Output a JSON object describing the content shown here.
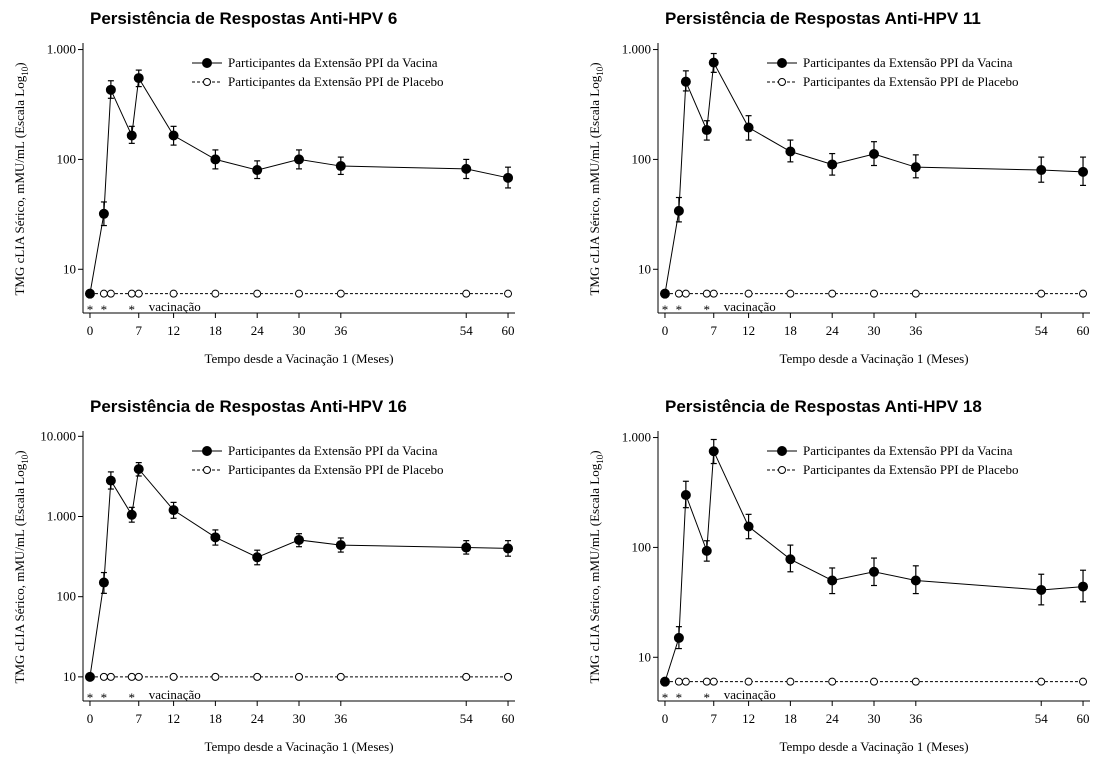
{
  "chart_data": [
    {
      "type": "line",
      "title": "Persistência de Respostas Anti-HPV 6",
      "ylabel": "TMG cLIA Sérico, mMU/mL (Escala Log",
      "ylabel_sub": "10",
      "ylabel_end": ")",
      "xlabel": "Tempo desde a Vacinação 1 (Meses)",
      "x": [
        0,
        2,
        3,
        6,
        7,
        12,
        18,
        24,
        30,
        36,
        54,
        60
      ],
      "series": [
        {
          "name": "Participantes da Extensão PPI da Vacina",
          "color": "#000000",
          "marker": "filled",
          "dashed": false,
          "values": [
            6,
            32,
            430,
            165,
            550,
            165,
            100,
            80,
            100,
            87,
            82,
            68
          ],
          "err_low": [
            null,
            25,
            360,
            140,
            460,
            135,
            82,
            67,
            82,
            73,
            67,
            55
          ],
          "err_high": [
            null,
            41,
            520,
            200,
            650,
            200,
            122,
            97,
            122,
            105,
            100,
            85
          ]
        },
        {
          "name": "Participantes da Extensão PPI de Placebo",
          "color": "#000000",
          "marker": "open",
          "dashed": true,
          "values": [
            6,
            6,
            6,
            6,
            6,
            6,
            6,
            6,
            6,
            6,
            6,
            6
          ]
        }
      ],
      "xlim": [
        -1,
        61
      ],
      "xticks": [
        0,
        7,
        12,
        18,
        24,
        30,
        36,
        54,
        60
      ],
      "ylim": [
        4,
        1100
      ],
      "yticks": [
        10,
        100,
        {
          "value": 1000,
          "label": "1.000"
        }
      ],
      "log_y": true,
      "vaccination_marker": "*",
      "vaccination_x": [
        0,
        2,
        6
      ],
      "vaccination_text": "vacinação"
    },
    {
      "type": "line",
      "title": "Persistência de Respostas Anti-HPV 11",
      "ylabel": "TMG cLIA Sérico, mMU/mL (Escala Log",
      "ylabel_sub": "10",
      "ylabel_end": ")",
      "xlabel": "Tempo desde a Vacinação 1 (Meses)",
      "x": [
        0,
        2,
        3,
        6,
        7,
        12,
        18,
        24,
        30,
        36,
        54,
        60
      ],
      "series": [
        {
          "name": "Participantes da Extensão PPI da Vacina",
          "color": "#000000",
          "marker": "filled",
          "dashed": false,
          "values": [
            6,
            34,
            510,
            185,
            760,
            195,
            118,
            90,
            112,
            85,
            80,
            77
          ],
          "err_low": [
            null,
            27,
            420,
            150,
            620,
            150,
            95,
            72,
            88,
            68,
            62,
            58
          ],
          "err_high": [
            null,
            45,
            640,
            225,
            920,
            250,
            150,
            113,
            145,
            110,
            105,
            105
          ]
        },
        {
          "name": "Participantes da Extensão PPI de Placebo",
          "color": "#000000",
          "marker": "open",
          "dashed": true,
          "values": [
            6,
            6,
            6,
            6,
            6,
            6,
            6,
            6,
            6,
            6,
            6,
            6
          ]
        }
      ],
      "xlim": [
        -1,
        61
      ],
      "xticks": [
        0,
        7,
        12,
        18,
        24,
        30,
        36,
        54,
        60
      ],
      "ylim": [
        4,
        1100
      ],
      "yticks": [
        10,
        100,
        {
          "value": 1000,
          "label": "1.000"
        }
      ],
      "log_y": true,
      "vaccination_marker": "*",
      "vaccination_x": [
        0,
        2,
        6
      ],
      "vaccination_text": "vacinação"
    },
    {
      "type": "line",
      "title": "Persistência de Respostas Anti-HPV 16",
      "ylabel": "TMG cLIA Sérico, mMU/mL (Escala Log",
      "ylabel_sub": "10",
      "ylabel_end": ")",
      "xlabel": "Tempo desde a Vacinação 1 (Meses)",
      "x": [
        0,
        2,
        3,
        6,
        7,
        12,
        18,
        24,
        30,
        36,
        54,
        60
      ],
      "series": [
        {
          "name": "Participantes da Extensão PPI da Vacina",
          "color": "#000000",
          "marker": "filled",
          "dashed": false,
          "values": [
            10,
            150,
            2800,
            1050,
            3900,
            1200,
            550,
            310,
            510,
            440,
            410,
            400
          ],
          "err_low": [
            null,
            110,
            2200,
            850,
            3200,
            950,
            440,
            250,
            420,
            360,
            340,
            320
          ],
          "err_high": [
            null,
            200,
            3600,
            1300,
            4700,
            1500,
            680,
            380,
            610,
            540,
            500,
            500
          ]
        },
        {
          "name": "Participantes da Extensão PPI de Placebo",
          "color": "#000000",
          "marker": "open",
          "dashed": true,
          "values": [
            10,
            10,
            10,
            10,
            10,
            10,
            10,
            10,
            10,
            10,
            10,
            10
          ]
        }
      ],
      "xlim": [
        -1,
        61
      ],
      "xticks": [
        0,
        7,
        12,
        18,
        24,
        30,
        36,
        54,
        60
      ],
      "ylim": [
        5,
        11000
      ],
      "yticks": [
        10,
        100,
        {
          "value": 1000,
          "label": "1.000"
        },
        {
          "value": 10000,
          "label": "10.000"
        }
      ],
      "log_y": true,
      "vaccination_marker": "*",
      "vaccination_x": [
        0,
        2,
        6
      ],
      "vaccination_text": "vacinação"
    },
    {
      "type": "line",
      "title": "Persistência de Respostas Anti-HPV 18",
      "ylabel": "TMG cLIA Sérico, mMU/mL (Escala Log",
      "ylabel_sub": "10",
      "ylabel_end": ")",
      "xlabel": "Tempo desde a Vacinação 1 (Meses)",
      "x": [
        0,
        2,
        3,
        6,
        7,
        12,
        18,
        24,
        30,
        36,
        54,
        60
      ],
      "series": [
        {
          "name": "Participantes da Extensão PPI da Vacina",
          "color": "#000000",
          "marker": "filled",
          "dashed": false,
          "values": [
            6,
            15,
            300,
            93,
            750,
            155,
            78,
            50,
            60,
            50,
            41,
            44
          ],
          "err_low": [
            null,
            12,
            230,
            75,
            580,
            120,
            60,
            38,
            45,
            38,
            30,
            32
          ],
          "err_high": [
            null,
            19,
            400,
            115,
            960,
            200,
            105,
            65,
            80,
            68,
            57,
            62
          ]
        },
        {
          "name": "Participantes da Extensão PPI de Placebo",
          "color": "#000000",
          "marker": "open",
          "dashed": true,
          "values": [
            6,
            6,
            6,
            6,
            6,
            6,
            6,
            6,
            6,
            6,
            6,
            6
          ]
        }
      ],
      "xlim": [
        -1,
        61
      ],
      "xticks": [
        0,
        7,
        12,
        18,
        24,
        30,
        36,
        54,
        60
      ],
      "ylim": [
        4,
        1100
      ],
      "yticks": [
        10,
        100,
        {
          "value": 1000,
          "label": "1.000"
        }
      ],
      "log_y": true,
      "vaccination_marker": "*",
      "vaccination_x": [
        0,
        2,
        6
      ],
      "vaccination_text": "vacinação"
    }
  ]
}
